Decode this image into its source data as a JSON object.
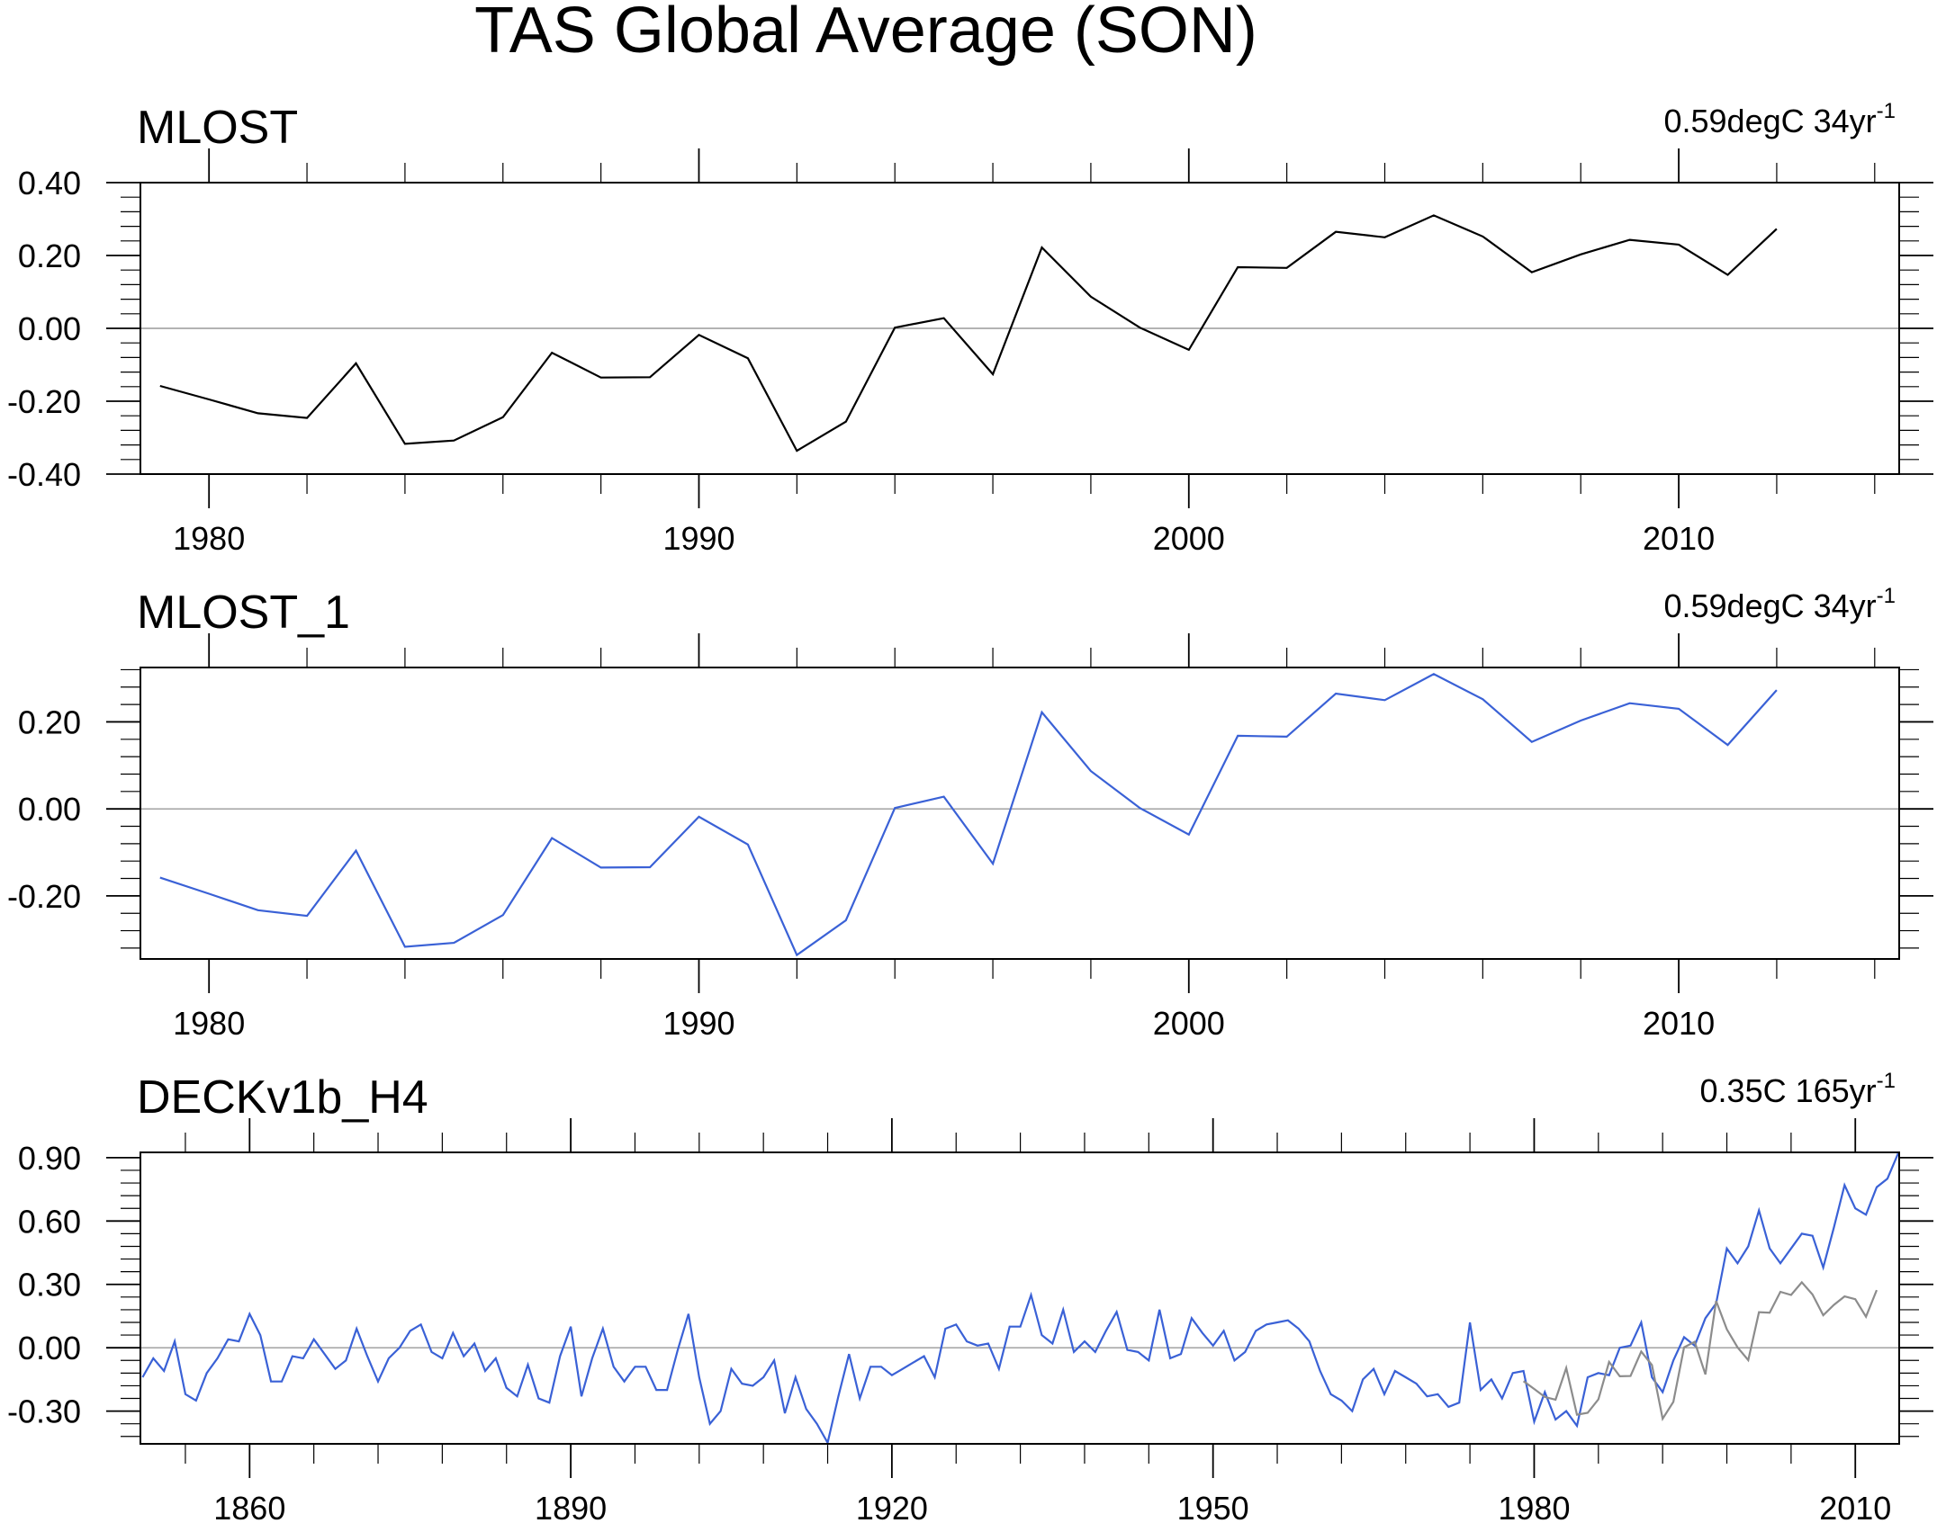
{
  "title": "TAS Global Average (SON)",
  "chart_data": [
    {
      "type": "line",
      "title": "MLOST",
      "trend_text": "0.59degC 34yr",
      "trend_exponent": "-1",
      "xlim": [
        1978.6,
        2014.5
      ],
      "ylim": [
        -0.4,
        0.4
      ],
      "x_ticks": [
        1980,
        1990,
        2000,
        2010
      ],
      "y_ticks": [
        0.4,
        0.2,
        0.0,
        -0.2,
        -0.4
      ],
      "y_tick_labels": [
        "0.40",
        "0.20",
        "0.00",
        "-0.20",
        "-0.40"
      ],
      "series": [
        {
          "name": "MLOST",
          "color": "#000000",
          "x": [
            1979,
            1980,
            1981,
            1982,
            1983,
            1984,
            1985,
            1986,
            1987,
            1988,
            1989,
            1990,
            1991,
            1992,
            1993,
            1994,
            1995,
            1996,
            1997,
            1998,
            1999,
            2000,
            2001,
            2002,
            2003,
            2004,
            2005,
            2006,
            2007,
            2008,
            2009,
            2010,
            2011,
            2012
          ],
          "values": [
            -0.158,
            -0.195,
            -0.233,
            -0.246,
            -0.096,
            -0.317,
            -0.308,
            -0.244,
            -0.067,
            -0.135,
            -0.134,
            -0.018,
            -0.082,
            -0.336,
            -0.256,
            0.002,
            0.028,
            -0.126,
            0.222,
            0.087,
            0.002,
            -0.059,
            0.168,
            0.166,
            0.265,
            0.25,
            0.31,
            0.252,
            0.154,
            0.203,
            0.243,
            0.23,
            0.147,
            0.273
          ]
        }
      ]
    },
    {
      "type": "line",
      "title": "MLOST_1",
      "trend_text": "0.59degC 34yr",
      "trend_exponent": "-1",
      "xlim": [
        1978.6,
        2014.5
      ],
      "ylim": [
        -0.345,
        0.325
      ],
      "x_ticks": [
        1980,
        1990,
        2000,
        2010
      ],
      "y_ticks": [
        0.2,
        0.0,
        -0.2
      ],
      "y_tick_labels": [
        "0.20",
        "0.00",
        "-0.20"
      ],
      "series": [
        {
          "name": "MLOST_1",
          "color": "#3a61d6",
          "x": [
            1979,
            1980,
            1981,
            1982,
            1983,
            1984,
            1985,
            1986,
            1987,
            1988,
            1989,
            1990,
            1991,
            1992,
            1993,
            1994,
            1995,
            1996,
            1997,
            1998,
            1999,
            2000,
            2001,
            2002,
            2003,
            2004,
            2005,
            2006,
            2007,
            2008,
            2009,
            2010,
            2011,
            2012
          ],
          "values": [
            -0.158,
            -0.195,
            -0.233,
            -0.246,
            -0.096,
            -0.317,
            -0.308,
            -0.244,
            -0.067,
            -0.135,
            -0.134,
            -0.018,
            -0.082,
            -0.336,
            -0.256,
            0.002,
            0.028,
            -0.126,
            0.222,
            0.087,
            0.002,
            -0.059,
            0.168,
            0.166,
            0.265,
            0.25,
            0.31,
            0.252,
            0.154,
            0.203,
            0.243,
            0.23,
            0.147,
            0.273
          ]
        }
      ]
    },
    {
      "type": "line",
      "title": "DECKv1b_H4",
      "trend_text": "0.35C 165yr",
      "trend_exponent": "-1",
      "xlim": [
        1849.8,
        2014.1
      ],
      "ylim": [
        -0.455,
        0.925
      ],
      "x_ticks": [
        1860,
        1890,
        1920,
        1950,
        1980,
        2010
      ],
      "y_ticks": [
        0.9,
        0.6,
        0.3,
        0.0,
        -0.3
      ],
      "y_tick_labels": [
        "0.90",
        "0.60",
        "0.30",
        "0.00",
        "-0.30"
      ],
      "series": [
        {
          "name": "DECKv1b_H4",
          "color": "#3a61d6",
          "x_start": 1850,
          "values": [
            -0.14,
            -0.05,
            -0.11,
            0.03,
            -0.22,
            -0.25,
            -0.12,
            -0.05,
            0.04,
            0.03,
            0.16,
            0.06,
            -0.16,
            -0.16,
            -0.04,
            -0.05,
            0.04,
            -0.03,
            -0.1,
            -0.06,
            0.09,
            -0.04,
            -0.16,
            -0.05,
            0.0,
            0.08,
            0.11,
            -0.02,
            -0.05,
            0.07,
            -0.04,
            0.02,
            -0.11,
            -0.05,
            -0.19,
            -0.23,
            -0.08,
            -0.24,
            -0.26,
            -0.04,
            0.1,
            -0.23,
            -0.05,
            0.09,
            -0.09,
            -0.16,
            -0.09,
            -0.09,
            -0.2,
            -0.2,
            -0.01,
            0.16,
            -0.14,
            -0.36,
            -0.3,
            -0.1,
            -0.17,
            -0.18,
            -0.14,
            -0.06,
            -0.31,
            -0.14,
            -0.29,
            -0.36,
            -0.45,
            -0.23,
            -0.03,
            -0.24,
            -0.09,
            -0.09,
            -0.13,
            -0.1,
            -0.07,
            -0.04,
            -0.14,
            0.09,
            0.11,
            0.03,
            0.01,
            0.02,
            -0.1,
            0.1,
            0.1,
            0.25,
            0.06,
            0.02,
            0.18,
            -0.02,
            0.03,
            -0.02,
            0.08,
            0.17,
            -0.01,
            -0.02,
            -0.06,
            0.18,
            -0.05,
            -0.03,
            0.14,
            0.07,
            0.01,
            0.08,
            -0.06,
            -0.02,
            0.08,
            0.11,
            0.12,
            0.13,
            0.09,
            0.03,
            -0.11,
            -0.22,
            -0.25,
            -0.3,
            -0.15,
            -0.1,
            -0.22,
            -0.11,
            -0.14,
            -0.17,
            -0.23,
            -0.22,
            -0.28,
            -0.26,
            0.12,
            -0.2,
            -0.15,
            -0.24,
            -0.12,
            -0.11,
            -0.35,
            -0.21,
            -0.34,
            -0.3,
            -0.37,
            -0.14,
            -0.12,
            -0.13,
            0.0,
            0.01,
            0.12,
            -0.14,
            -0.21,
            -0.06,
            0.05,
            0.01,
            0.14,
            0.21,
            0.47,
            0.4,
            0.48,
            0.65,
            0.47,
            0.4,
            0.47,
            0.54,
            0.53,
            0.38,
            0.57,
            0.77,
            0.66,
            0.63,
            0.76,
            0.8,
            0.92
          ]
        },
        {
          "name": "MLOST",
          "color": "#8c8c8c",
          "x_start": 1979,
          "values": [
            -0.158,
            -0.195,
            -0.233,
            -0.246,
            -0.096,
            -0.317,
            -0.308,
            -0.244,
            -0.067,
            -0.135,
            -0.134,
            -0.018,
            -0.082,
            -0.336,
            -0.256,
            0.002,
            0.028,
            -0.126,
            0.222,
            0.087,
            0.002,
            -0.059,
            0.168,
            0.166,
            0.265,
            0.25,
            0.31,
            0.252,
            0.154,
            0.203,
            0.243,
            0.23,
            0.147,
            0.273
          ]
        }
      ]
    }
  ]
}
